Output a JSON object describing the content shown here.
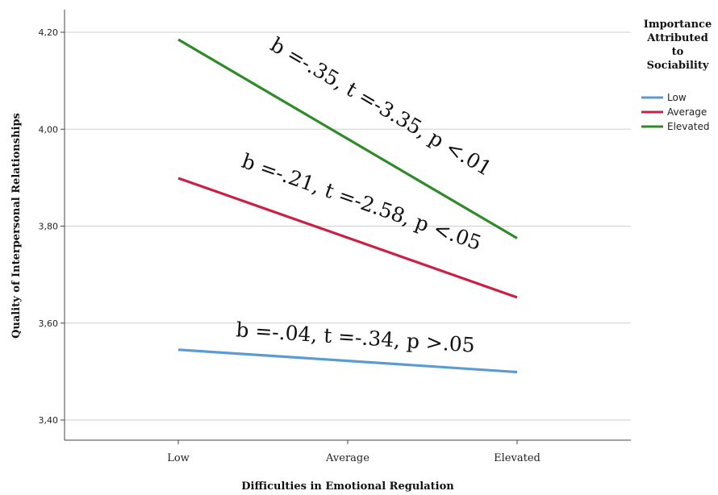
{
  "chart_data": {
    "type": "line",
    "xlabel": "Difficulties in Emotional Regulation",
    "ylabel": "Quality of Interpersonal Relationships",
    "categories": [
      "Low",
      "Average",
      "Elevated"
    ],
    "ylim": [
      3.35,
      4.25
    ],
    "yticks": [
      3.4,
      3.6,
      3.8,
      4.0,
      4.2
    ],
    "ytick_labels": [
      "3,40",
      "3,60",
      "3,80",
      "4,00",
      "4,20"
    ],
    "grid": true,
    "legend": {
      "title_lines": [
        "Importance",
        "Attributed",
        "to",
        "Sociability"
      ],
      "placement": "top-right"
    },
    "series": [
      {
        "name": "Low",
        "color": "#5b9bd5",
        "values": [
          3.545,
          3.522,
          3.499
        ]
      },
      {
        "name": "Average",
        "color": "#cc1f45",
        "values": [
          3.899,
          3.776,
          3.653
        ]
      },
      {
        "name": "Elevated",
        "color": "#2e8b28",
        "values": [
          4.185,
          3.98,
          3.775
        ]
      }
    ],
    "annotations": [
      {
        "series": "Elevated",
        "text": "b =-.35, t =-3.35, p <.01"
      },
      {
        "series": "Average",
        "text": "b =-.21, t =-2.58, p <.05"
      },
      {
        "series": "Low",
        "text": "b =-.04, t =-.34, p >.05"
      }
    ]
  }
}
